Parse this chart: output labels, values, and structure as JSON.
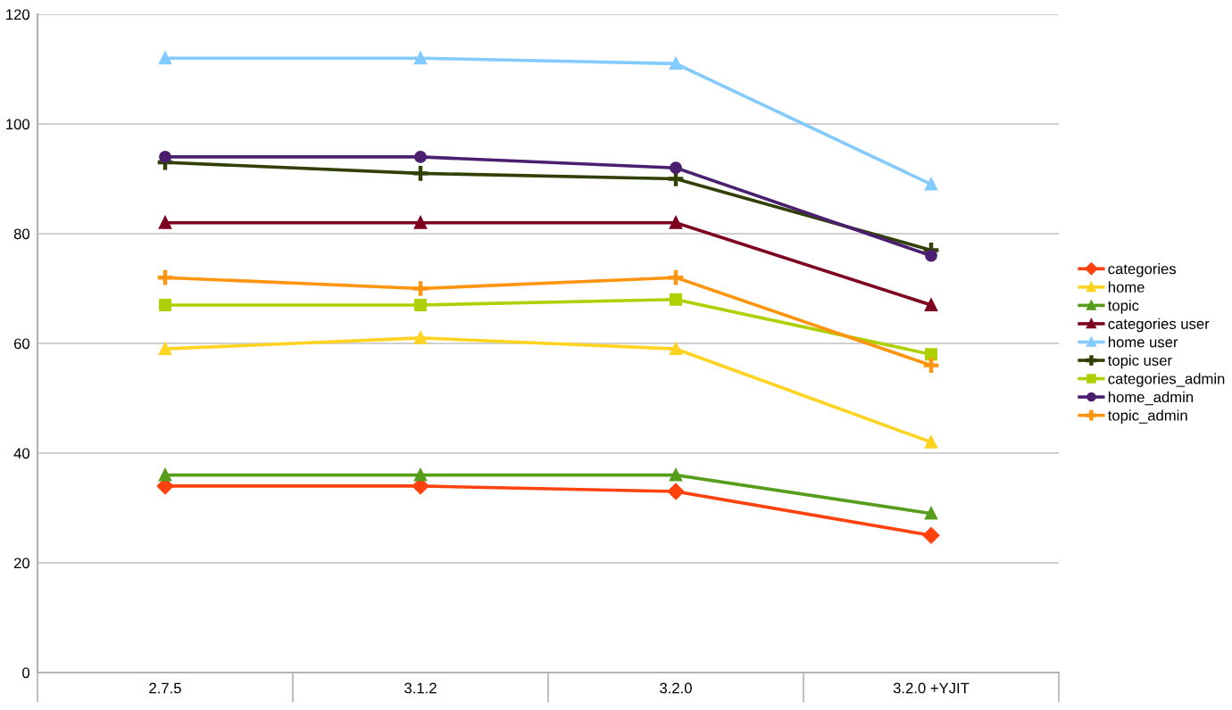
{
  "chart_data": {
    "type": "line",
    "categories": [
      "2.7.5",
      "3.1.2",
      "3.2.0",
      "3.2.0 +YJIT"
    ],
    "ylim": [
      0,
      120
    ],
    "yticks": [
      0,
      20,
      40,
      60,
      80,
      100,
      120
    ],
    "grid": "y",
    "legend": "right",
    "series": [
      {
        "name": "categories",
        "color": "#ff420e",
        "marker": "diamond",
        "values": [
          34,
          34,
          33,
          25
        ]
      },
      {
        "name": "home",
        "color": "#ffd320",
        "marker": "triangle",
        "values": [
          59,
          61,
          59,
          42
        ]
      },
      {
        "name": "topic",
        "color": "#579d1c",
        "marker": "triangle",
        "values": [
          36,
          36,
          36,
          29
        ]
      },
      {
        "name": "categories user",
        "color": "#7e0021",
        "marker": "triangle",
        "values": [
          82,
          82,
          82,
          67
        ]
      },
      {
        "name": "home user",
        "color": "#83caff",
        "marker": "triangle",
        "values": [
          112,
          112,
          111,
          89
        ]
      },
      {
        "name": "topic user",
        "color": "#314004",
        "marker": "cross",
        "values": [
          93,
          91,
          90,
          77
        ]
      },
      {
        "name": "categories_admin",
        "color": "#aecf00",
        "marker": "square",
        "values": [
          67,
          67,
          68,
          58
        ]
      },
      {
        "name": "home_admin",
        "color": "#4b1f6f",
        "marker": "circle",
        "values": [
          94,
          94,
          92,
          76
        ]
      },
      {
        "name": "topic_admin",
        "color": "#ff950e",
        "marker": "cross",
        "values": [
          72,
          70,
          72,
          56
        ]
      }
    ]
  }
}
